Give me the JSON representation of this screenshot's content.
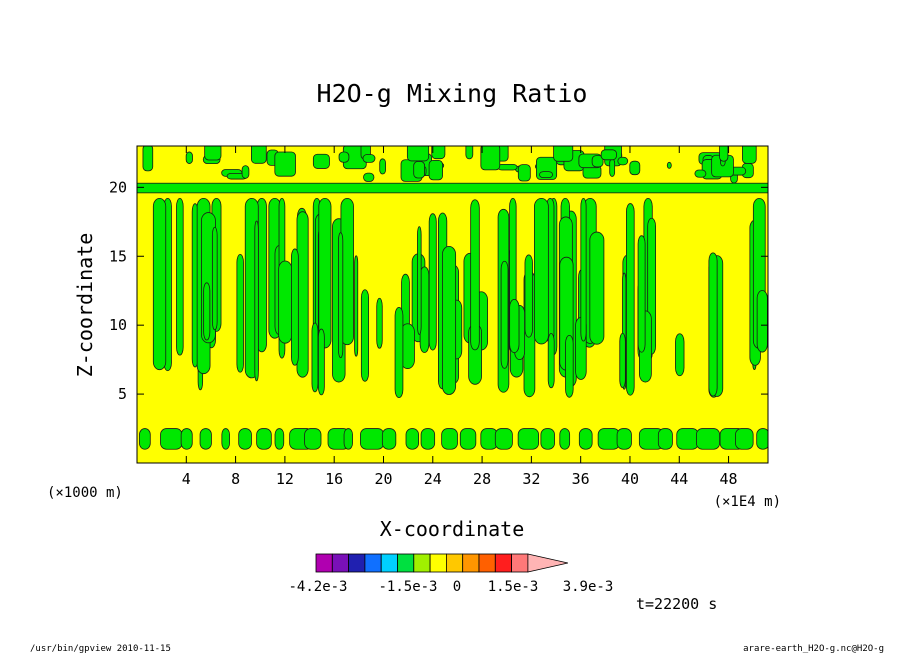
{
  "chart_data": {
    "type": "heatmap",
    "title": "H2O-g Mixing Ratio",
    "xlabel": "X-coordinate",
    "ylabel": "Z-coordinate",
    "x_unit_left": "(×1000 m)",
    "x_unit_right": "(×1E4 m)",
    "x_ticks": [
      4,
      8,
      12,
      16,
      20,
      24,
      28,
      32,
      36,
      40,
      44,
      48
    ],
    "y_ticks": [
      5,
      10,
      15,
      20
    ],
    "xlim": [
      0,
      51.2
    ],
    "ylim": [
      0,
      23
    ],
    "colorbar": {
      "colors": [
        "#b000b0",
        "#7a10b8",
        "#2020b0",
        "#1070ff",
        "#00d0ff",
        "#00e040",
        "#a0f000",
        "#ffff00",
        "#ffc800",
        "#ff9600",
        "#ff6000",
        "#ff1e1e",
        "#ff7878",
        "#ffb4b4"
      ],
      "tick_labels": [
        "-4.2e-3",
        "-1.5e-3",
        "0",
        "1.5e-3",
        "3.9e-3"
      ]
    },
    "colors": {
      "low": "#00e800",
      "high": "#ffff00"
    },
    "bands": [
      {
        "z_range": [
          1.0,
          2.6
        ],
        "pattern": "green-blobs"
      },
      {
        "z_range": [
          2.6,
          5.0
        ],
        "fill": "yellow"
      },
      {
        "z_range": [
          5.0,
          19.0
        ],
        "pattern": "vertical-plumes"
      },
      {
        "z_range": [
          19.6,
          20.3
        ],
        "fill": "green-line"
      },
      {
        "z_range": [
          20.3,
          23.0
        ],
        "pattern": "mixed"
      }
    ]
  },
  "time_label": "t=22200 s",
  "footer": {
    "left": "/usr/bin/gpview  2010-11-15",
    "right": "arare-earth_H2O-g.nc@H2O-g"
  }
}
